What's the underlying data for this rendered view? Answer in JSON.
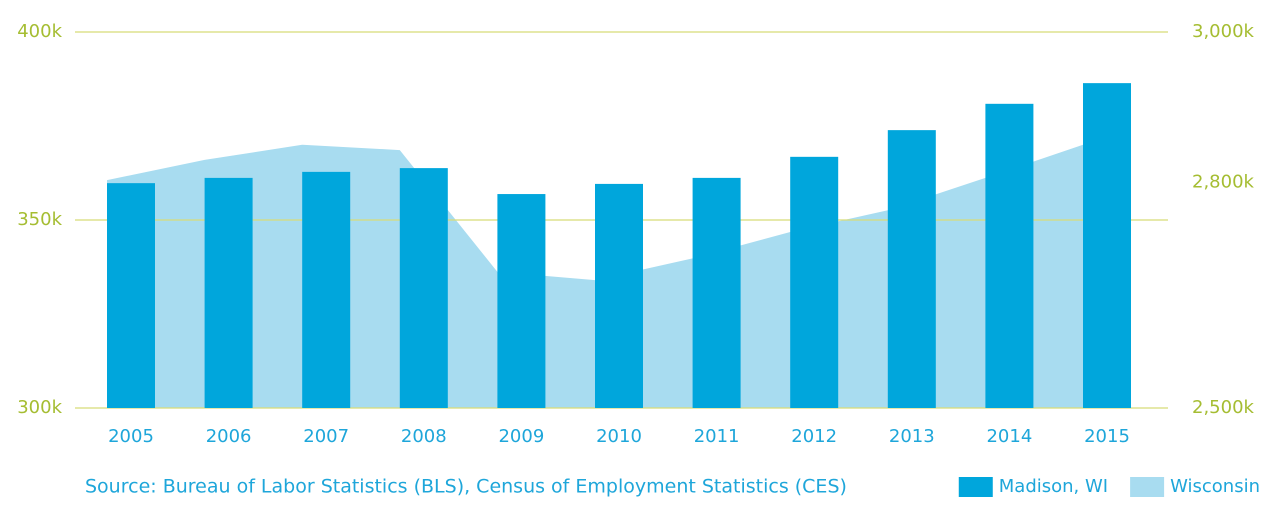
{
  "chart_data": {
    "type": "bar",
    "categories": [
      "2005",
      "2006",
      "2007",
      "2008",
      "2009",
      "2010",
      "2011",
      "2012",
      "2013",
      "2014",
      "2015"
    ],
    "series": [
      {
        "name": "Madison, WI",
        "color": "#00a6dc",
        "type": "bar",
        "values": [
          359.8,
          361.2,
          362.8,
          363.8,
          356.9,
          359.6,
          361.2,
          366.8,
          373.9,
          380.9,
          386.4
        ]
      },
      {
        "name": "Wisconsin",
        "color": "#a8dcf0",
        "type": "area",
        "axis": "y2",
        "values": [
          2803,
          2830,
          2850,
          2843,
          2681,
          2670,
          2699,
          2734,
          2763,
          2806,
          2850
        ]
      }
    ],
    "ylim": [
      300,
      400
    ],
    "yticks": [
      {
        "value": 300,
        "label": "300k"
      },
      {
        "value": 350,
        "label": "350k"
      },
      {
        "value": 400,
        "label": "400k"
      }
    ],
    "y2lim": [
      2500,
      3000
    ],
    "y2ticks": [
      {
        "value": 2500,
        "label": "2,500k"
      },
      {
        "value": 2800,
        "label": "2,800k"
      },
      {
        "value": 3000,
        "label": "3,000k"
      }
    ],
    "grid": true,
    "legend": "bottom-right",
    "source": "Source: Bureau of Labor Statistics (BLS), Census of Employment Statistics (CES)"
  }
}
